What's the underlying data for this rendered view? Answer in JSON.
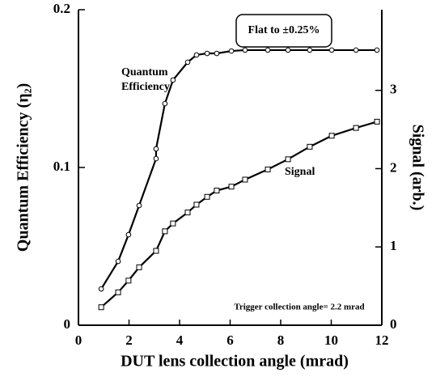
{
  "chart_data": {
    "type": "line",
    "xlabel": "DUT lens collection angle (mrad)",
    "ylabel": "Quantum Efficiency (η₂)",
    "y2label": "Signal (arb.)",
    "xlim": [
      0,
      12
    ],
    "xticks": [
      0,
      2,
      4,
      6,
      8,
      10,
      12
    ],
    "ylim": [
      0,
      0.2
    ],
    "yticks": [
      0,
      0.1,
      0.2
    ],
    "y2lim": [
      0,
      4.03
    ],
    "y2ticks": [
      0,
      1,
      2,
      3
    ],
    "series": [
      {
        "name": "Quantum Efficiency",
        "color": "#000000",
        "marker": "circle",
        "x": [
          0.9,
          1.57,
          1.98,
          2.4,
          3.07,
          3.07,
          3.42,
          3.74,
          4.32,
          4.67,
          5.09,
          5.47,
          6.05,
          6.59,
          7.49,
          8.29,
          9.15,
          10.02,
          10.98,
          11.81
        ],
        "values": [
          0.023,
          0.0405,
          0.0574,
          0.0759,
          0.1056,
          0.1118,
          0.1405,
          0.1554,
          0.1667,
          0.1713,
          0.1723,
          0.1723,
          0.1738,
          0.1744,
          0.1744,
          0.1744,
          0.1744,
          0.1744,
          0.1744,
          0.1744
        ]
      },
      {
        "name": "Signal",
        "color": "#000000",
        "marker": "square",
        "axis": "y2",
        "x": [
          0.9,
          1.57,
          1.98,
          2.4,
          3.07,
          3.42,
          3.74,
          4.32,
          4.67,
          5.09,
          5.47,
          6.05,
          6.59,
          7.49,
          8.29,
          9.15,
          10.02,
          10.98,
          11.81
        ],
        "values": [
          0.23,
          0.42,
          0.57,
          0.74,
          0.95,
          1.2,
          1.3,
          1.44,
          1.54,
          1.64,
          1.72,
          1.77,
          1.86,
          1.99,
          2.12,
          2.28,
          2.42,
          2.52,
          2.6
        ]
      }
    ],
    "annotations": [
      "Flat to ±0.25%",
      "Trigger collection angle= 2.2 mrad"
    ]
  }
}
